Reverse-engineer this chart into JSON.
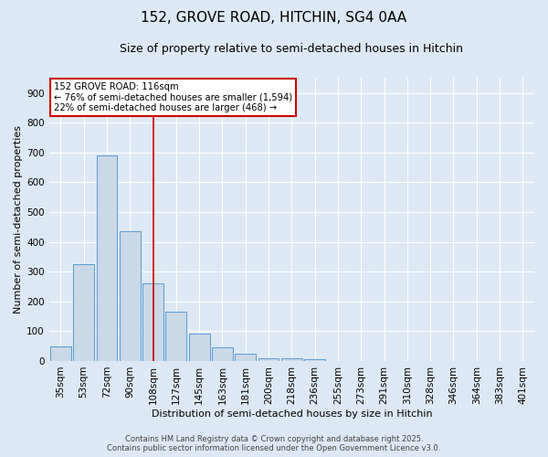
{
  "title": "152, GROVE ROAD, HITCHIN, SG4 0AA",
  "subtitle": "Size of property relative to semi-detached houses in Hitchin",
  "xlabel": "Distribution of semi-detached houses by size in Hitchin",
  "ylabel": "Number of semi-detached properties",
  "categories": [
    "35sqm",
    "53sqm",
    "72sqm",
    "90sqm",
    "108sqm",
    "127sqm",
    "145sqm",
    "163sqm",
    "181sqm",
    "200sqm",
    "218sqm",
    "236sqm",
    "255sqm",
    "273sqm",
    "291sqm",
    "310sqm",
    "328sqm",
    "346sqm",
    "364sqm",
    "383sqm",
    "401sqm"
  ],
  "values": [
    50,
    325,
    690,
    435,
    260,
    165,
    93,
    47,
    25,
    10,
    8,
    7,
    0,
    0,
    0,
    0,
    0,
    0,
    0,
    0,
    0
  ],
  "bar_color": "#c9d9e8",
  "bar_edge_color": "#5b9bd5",
  "ylim": [
    0,
    950
  ],
  "yticks": [
    0,
    100,
    200,
    300,
    400,
    500,
    600,
    700,
    800,
    900
  ],
  "red_line_x": 4.0,
  "annotation_title": "152 GROVE ROAD: 116sqm",
  "annotation_line1": "← 76% of semi-detached houses are smaller (1,594)",
  "annotation_line2": "22% of semi-detached houses are larger (468) →",
  "footnote1": "Contains HM Land Registry data © Crown copyright and database right 2025.",
  "footnote2": "Contains public sector information licensed under the Open Government Licence v3.0.",
  "background_color": "#dce9f5",
  "plot_bg_color": "#dce9f5",
  "title_fontsize": 11,
  "subtitle_fontsize": 9,
  "axis_label_fontsize": 8,
  "tick_fontsize": 7.5,
  "footnote_fontsize": 6
}
